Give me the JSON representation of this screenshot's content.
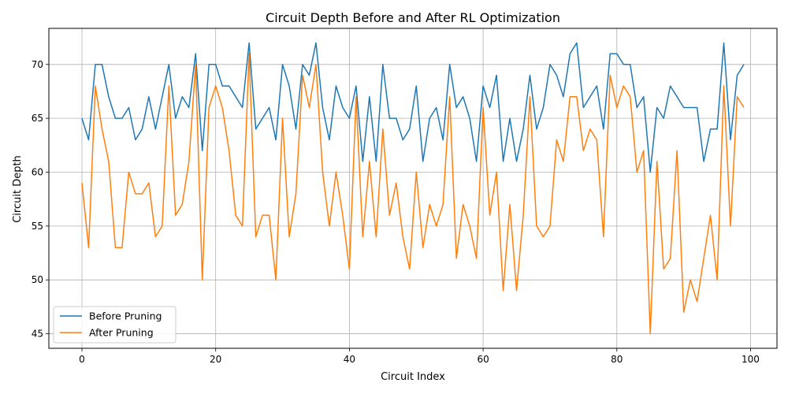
{
  "chart_data": {
    "type": "line",
    "title": "Circuit Depth Before and After RL Optimization",
    "xlabel": "Circuit Index",
    "ylabel": "Circuit Depth",
    "xlim": [
      -4.95,
      103.95
    ],
    "ylim": [
      43.65,
      73.35
    ],
    "xticks": [
      0,
      20,
      40,
      60,
      80,
      100
    ],
    "yticks": [
      45,
      50,
      55,
      60,
      65,
      70
    ],
    "grid": true,
    "legend_position": "lower-left",
    "series": [
      {
        "name": "Before Pruning",
        "color": "#1f77b4",
        "values": [
          65,
          63,
          70,
          70,
          67,
          65,
          65,
          66,
          63,
          64,
          67,
          64,
          67,
          70,
          65,
          67,
          66,
          71,
          62,
          70,
          70,
          68,
          68,
          67,
          66,
          72,
          64,
          65,
          66,
          63,
          70,
          68,
          64,
          70,
          69,
          72,
          66,
          63,
          68,
          66,
          65,
          68,
          61,
          67,
          61,
          70,
          65,
          65,
          63,
          64,
          68,
          61,
          65,
          66,
          63,
          70,
          66,
          67,
          65,
          61,
          68,
          66,
          69,
          61,
          65,
          61,
          64,
          69,
          64,
          66,
          70,
          69,
          67,
          71,
          72,
          66,
          67,
          68,
          64,
          71,
          71,
          70,
          70,
          66,
          67,
          60,
          66,
          65,
          68,
          67,
          66,
          66,
          66,
          61,
          64,
          64,
          72,
          63,
          69,
          70
        ]
      },
      {
        "name": "After Pruning",
        "color": "#ff7f0e",
        "values": [
          59,
          53,
          68,
          64,
          61,
          53,
          53,
          60,
          58,
          58,
          59,
          54,
          55,
          68,
          56,
          57,
          61,
          70,
          50,
          66,
          68,
          66,
          62,
          56,
          55,
          71,
          54,
          56,
          56,
          50,
          65,
          54,
          58,
          69,
          66,
          70,
          60,
          55,
          60,
          56,
          51,
          67,
          54,
          61,
          54,
          64,
          56,
          59,
          54,
          51,
          60,
          53,
          57,
          55,
          57,
          67,
          52,
          57,
          55,
          52,
          66,
          56,
          60,
          49,
          57,
          49,
          56,
          67,
          55,
          54,
          55,
          63,
          61,
          67,
          67,
          62,
          64,
          63,
          54,
          69,
          66,
          68,
          67,
          60,
          62,
          45,
          61,
          51,
          52,
          62,
          47,
          50,
          48,
          52,
          56,
          50,
          68,
          55,
          67,
          66
        ]
      }
    ]
  }
}
